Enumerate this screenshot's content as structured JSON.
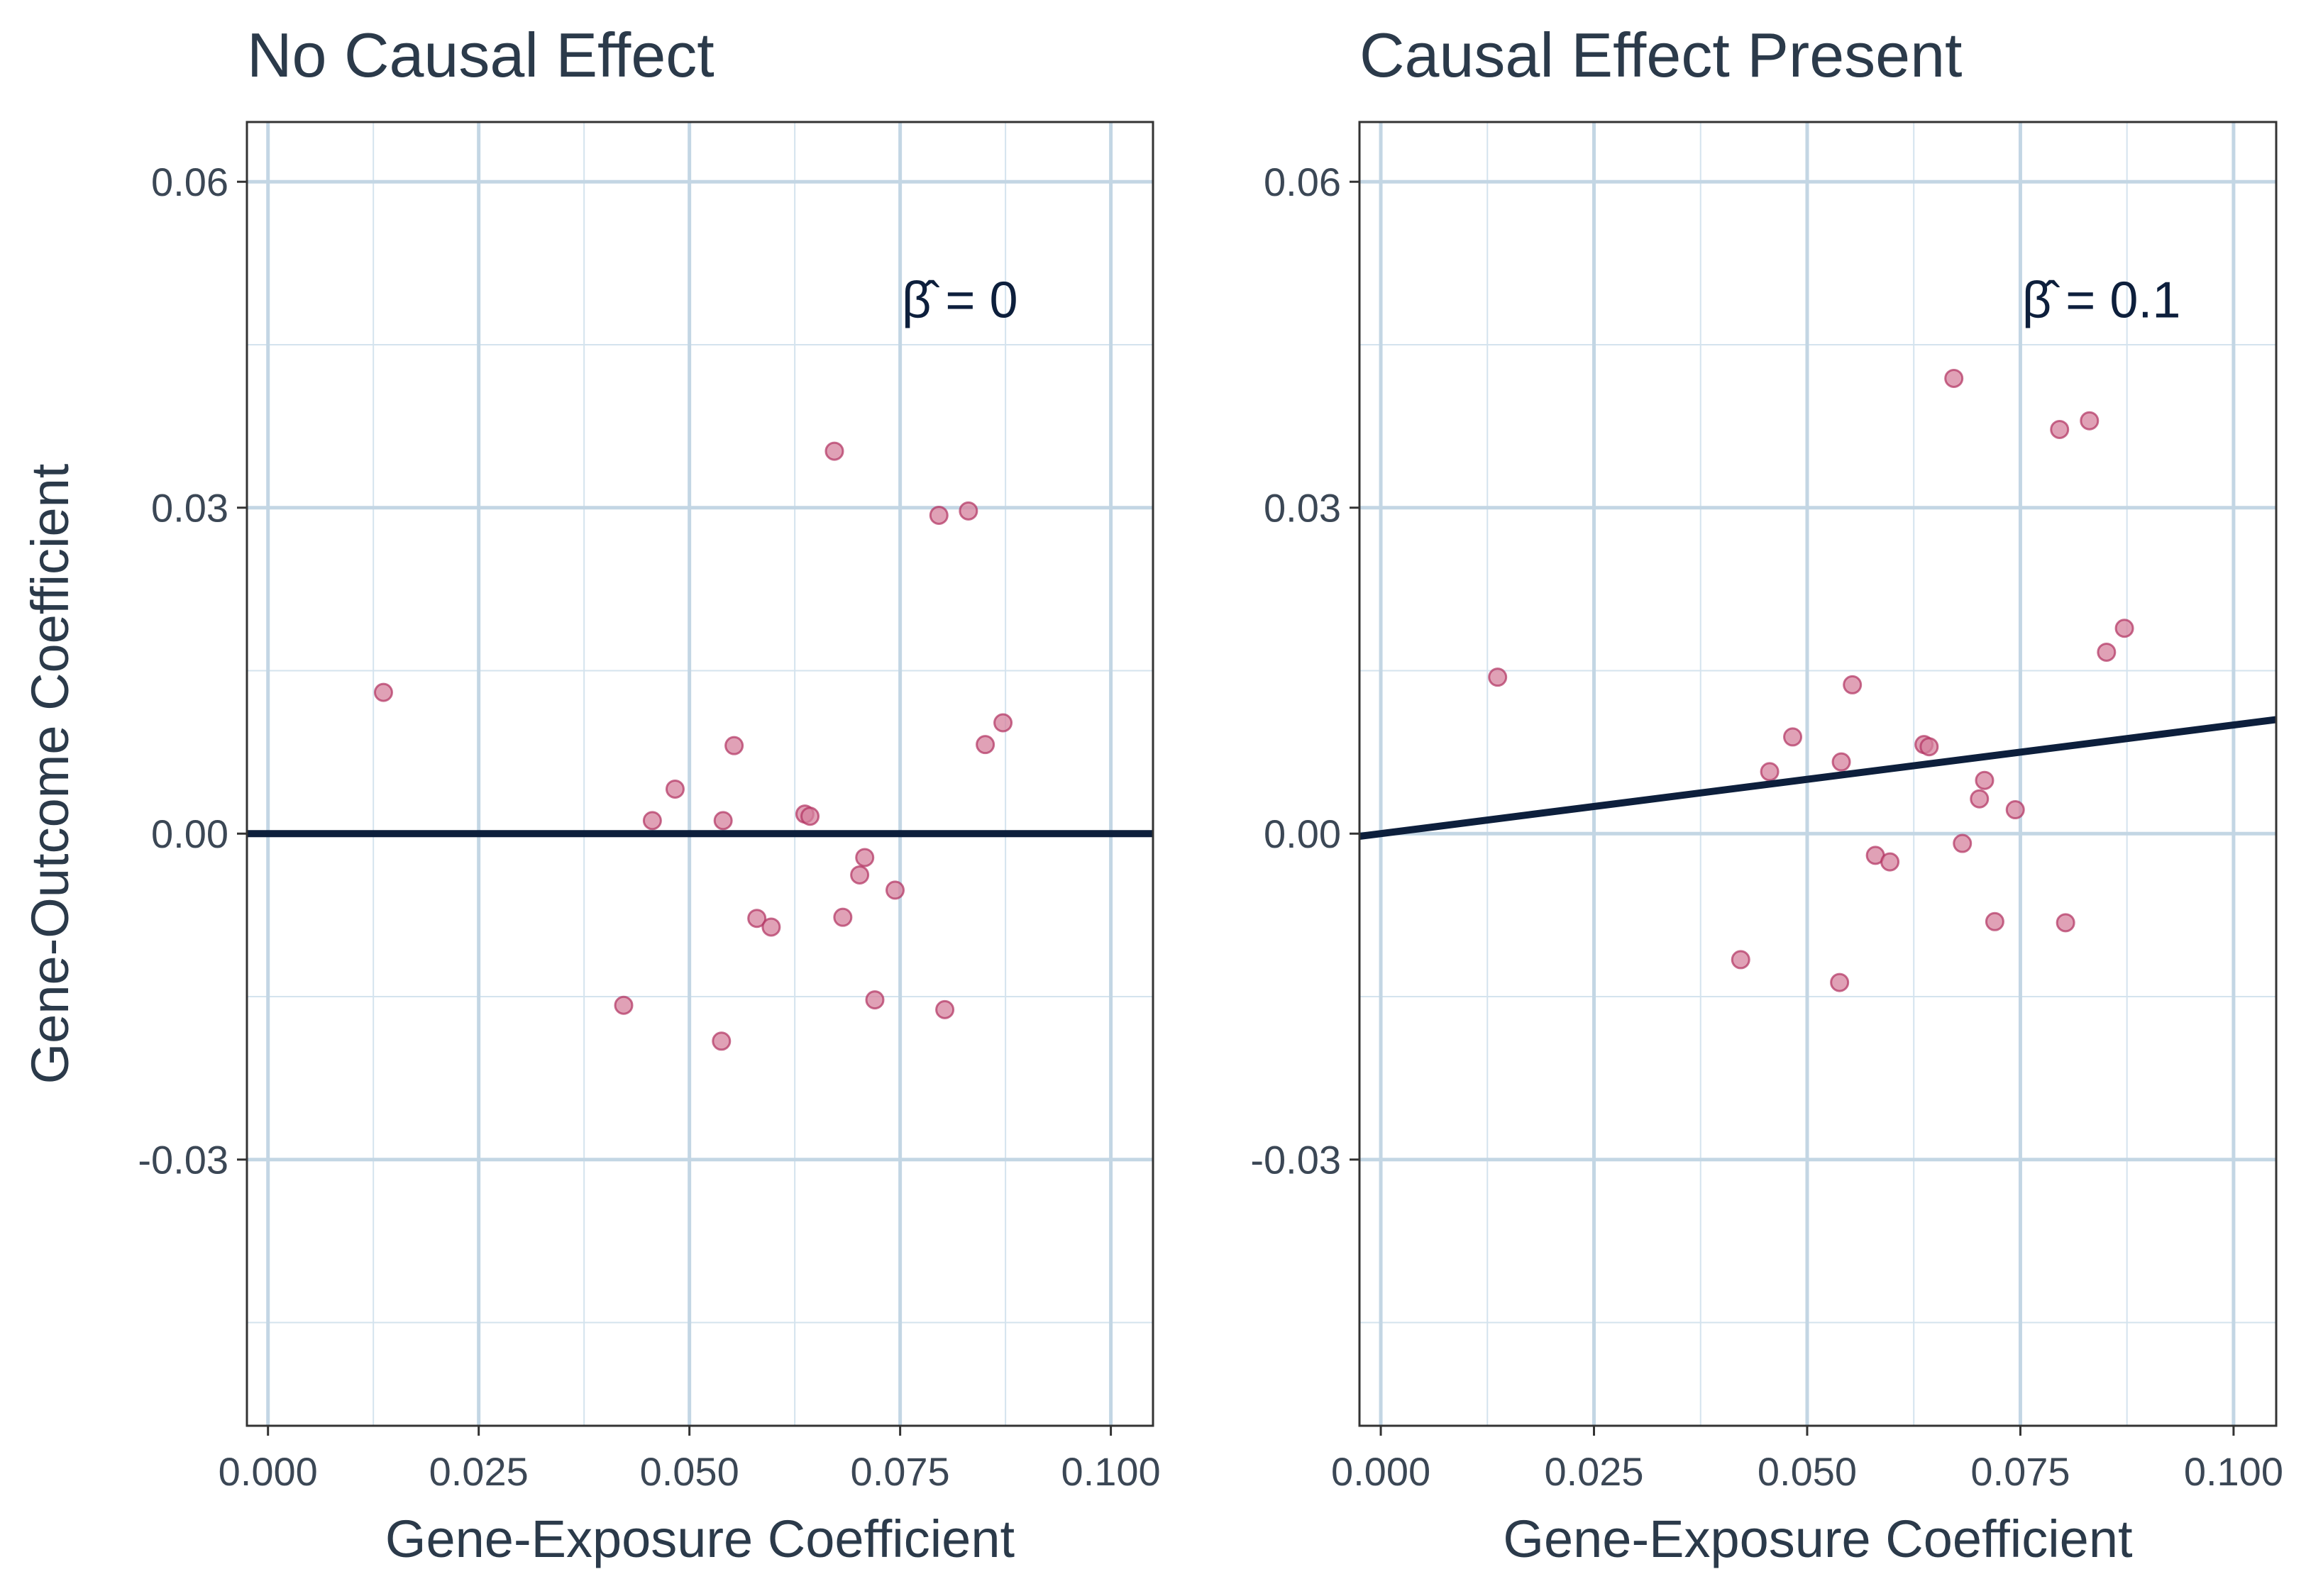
{
  "figure": {
    "shared_ylabel": "Gene-Outcome Coefficient",
    "colors": {
      "point_fill": "#d6819e",
      "point_stroke": "#b03060",
      "line": "#0d1f3c",
      "grid_major": "#c3d6e4",
      "grid_minor": "#d4e3ee",
      "text": "#2b3a4a"
    }
  },
  "chart_data": [
    {
      "type": "scatter",
      "title": "No Causal Effect",
      "xlabel": "Gene-Exposure Coefficient",
      "ylabel": "Gene-Outcome Coefficient",
      "annotation": "β̂ = 0",
      "xlim": [
        -0.0025,
        0.105
      ],
      "ylim": [
        -0.0545,
        0.0655
      ],
      "x_ticks": [
        0.0,
        0.025,
        0.05,
        0.075,
        0.1
      ],
      "x_tick_labels": [
        "0.000",
        "0.025",
        "0.050",
        "0.075",
        "0.100"
      ],
      "y_ticks": [
        -0.03,
        0.0,
        0.03,
        0.06
      ],
      "y_tick_labels": [
        "-0.03",
        "0.00",
        "0.03",
        "0.06"
      ],
      "grid": true,
      "fit_line": {
        "intercept": 0.0,
        "slope": 0.0
      },
      "points": [
        {
          "x": 0.0137,
          "y": 0.013
        },
        {
          "x": 0.0422,
          "y": -0.0158
        },
        {
          "x": 0.0456,
          "y": 0.0012
        },
        {
          "x": 0.0483,
          "y": 0.0041
        },
        {
          "x": 0.0538,
          "y": -0.0191
        },
        {
          "x": 0.054,
          "y": 0.0012
        },
        {
          "x": 0.0553,
          "y": 0.0081
        },
        {
          "x": 0.058,
          "y": -0.0078
        },
        {
          "x": 0.0597,
          "y": -0.0086
        },
        {
          "x": 0.0637,
          "y": 0.0018
        },
        {
          "x": 0.0643,
          "y": 0.0016
        },
        {
          "x": 0.0672,
          "y": 0.0352
        },
        {
          "x": 0.0682,
          "y": -0.0077
        },
        {
          "x": 0.0702,
          "y": -0.0038
        },
        {
          "x": 0.0708,
          "y": -0.0022
        },
        {
          "x": 0.072,
          "y": -0.0153
        },
        {
          "x": 0.0744,
          "y": -0.0052
        },
        {
          "x": 0.0796,
          "y": 0.0293
        },
        {
          "x": 0.0803,
          "y": -0.0162
        },
        {
          "x": 0.0831,
          "y": 0.0297
        },
        {
          "x": 0.0851,
          "y": 0.0082
        },
        {
          "x": 0.0872,
          "y": 0.0102
        }
      ]
    },
    {
      "type": "scatter",
      "title": "Causal Effect Present",
      "xlabel": "Gene-Exposure Coefficient",
      "ylabel": "",
      "annotation": "β̂ = 0.1",
      "xlim": [
        -0.0025,
        0.105
      ],
      "ylim": [
        -0.0545,
        0.0655
      ],
      "x_ticks": [
        0.0,
        0.025,
        0.05,
        0.075,
        0.1
      ],
      "x_tick_labels": [
        "0.000",
        "0.025",
        "0.050",
        "0.075",
        "0.100"
      ],
      "y_ticks": [
        -0.03,
        0.0,
        0.03,
        0.06
      ],
      "y_tick_labels": [
        "-0.03",
        "0.00",
        "0.03",
        "0.06"
      ],
      "grid": true,
      "fit_line": {
        "intercept": 0.0,
        "slope": 0.1
      },
      "points": [
        {
          "x": 0.0137,
          "y": 0.0144
        },
        {
          "x": 0.0422,
          "y": -0.0116
        },
        {
          "x": 0.0456,
          "y": 0.0057
        },
        {
          "x": 0.0483,
          "y": 0.0089
        },
        {
          "x": 0.0538,
          "y": -0.0137
        },
        {
          "x": 0.054,
          "y": 0.0066
        },
        {
          "x": 0.0553,
          "y": 0.0137
        },
        {
          "x": 0.058,
          "y": -0.002
        },
        {
          "x": 0.0597,
          "y": -0.0026
        },
        {
          "x": 0.0637,
          "y": 0.0082
        },
        {
          "x": 0.0643,
          "y": 0.008
        },
        {
          "x": 0.0672,
          "y": 0.0419
        },
        {
          "x": 0.0682,
          "y": -0.0009
        },
        {
          "x": 0.0702,
          "y": 0.0032
        },
        {
          "x": 0.0708,
          "y": 0.0049
        },
        {
          "x": 0.072,
          "y": -0.0081
        },
        {
          "x": 0.0744,
          "y": 0.0022
        },
        {
          "x": 0.0796,
          "y": 0.0372
        },
        {
          "x": 0.0803,
          "y": -0.0082
        },
        {
          "x": 0.0831,
          "y": 0.038
        },
        {
          "x": 0.0851,
          "y": 0.0167
        },
        {
          "x": 0.0872,
          "y": 0.0189
        }
      ]
    }
  ]
}
